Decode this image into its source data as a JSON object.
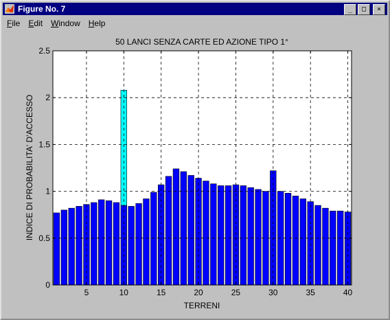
{
  "window": {
    "title": "Figure No. 7"
  },
  "titlebar_buttons": {
    "minimize": "_",
    "maximize": "□",
    "close": "×"
  },
  "menu": {
    "items": [
      "File",
      "Edit",
      "Window",
      "Help"
    ]
  },
  "colors": {
    "bar": "#0000ff",
    "highlight_bar": "#00ffff",
    "plot_bg": "#ffffff",
    "figure_bg": "#c0c0c0"
  },
  "chart_data": {
    "type": "bar",
    "title": "50 LANCI SENZA CARTE ED AZIONE TIPO 1°",
    "xlabel": "TERRENI",
    "ylabel": "INDICE DI PROBABILITA' D'ACCESSO",
    "xlim": [
      0.5,
      40.5
    ],
    "ylim": [
      0,
      2.5
    ],
    "xticks": [
      5,
      10,
      15,
      20,
      25,
      30,
      35,
      40
    ],
    "yticks": [
      0,
      0.5,
      1,
      1.5,
      2,
      2.5
    ],
    "ytick_labels": [
      "0",
      "0.5",
      "1",
      "1.5",
      "2",
      "2.5"
    ],
    "grid": true,
    "x": [
      1,
      2,
      3,
      4,
      5,
      6,
      7,
      8,
      9,
      10,
      11,
      12,
      13,
      14,
      15,
      16,
      17,
      18,
      19,
      20,
      21,
      22,
      23,
      24,
      25,
      26,
      27,
      28,
      29,
      30,
      31,
      32,
      33,
      34,
      35,
      36,
      37,
      38,
      39,
      40
    ],
    "values": [
      0.77,
      0.8,
      0.82,
      0.84,
      0.86,
      0.88,
      0.91,
      0.9,
      0.88,
      0.85,
      0.84,
      0.87,
      0.92,
      0.99,
      1.07,
      1.16,
      1.24,
      1.21,
      1.17,
      1.14,
      1.11,
      1.08,
      1.06,
      1.06,
      1.07,
      1.06,
      1.04,
      1.02,
      1.0,
      1.22,
      1.0,
      0.98,
      0.95,
      0.92,
      0.89,
      0.85,
      0.82,
      0.79,
      0.79,
      0.78
    ],
    "highlight": {
      "x": 10,
      "bottom": 0.85,
      "top": 2.08
    }
  }
}
